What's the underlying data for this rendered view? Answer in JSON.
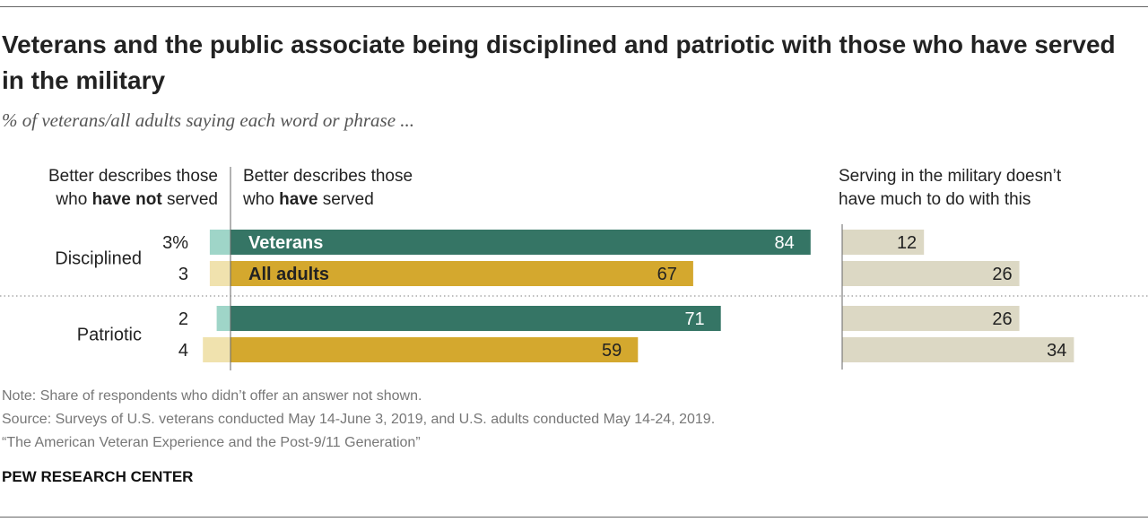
{
  "title": "Veterans and the public associate being disciplined and patriotic with those who have served in the military",
  "subtitle": "% of veterans/all adults saying each word or phrase ...",
  "column_headers": {
    "left_pre": "Better describes those",
    "left_line2_pre": "who ",
    "left_bold": "have not",
    "left_line2_post": " served",
    "middle_pre": "Better describes those",
    "middle_line2_pre": "who ",
    "middle_bold": "have",
    "middle_line2_post": " served",
    "right_line1": "Serving in the military doesn’t",
    "right_line2": "have much to do with this"
  },
  "colors": {
    "veterans": "#357565",
    "veterans_light": "#9fd5c8",
    "all_adults": "#d4a82e",
    "all_adults_light": "#f0e2ae",
    "neutral": "#dcd8c4"
  },
  "chart_data": {
    "type": "bar",
    "categories": [
      "Disciplined",
      "Patriotic"
    ],
    "series": [
      {
        "name": "Veterans",
        "not_served": [
          3,
          2
        ],
        "not_served_labels": [
          "3%",
          "2"
        ],
        "served": [
          84,
          71
        ],
        "neutral": [
          12,
          26
        ]
      },
      {
        "name": "All adults",
        "not_served": [
          3,
          4
        ],
        "not_served_labels": [
          "3",
          "4"
        ],
        "served": [
          67,
          59
        ],
        "neutral": [
          26,
          34
        ]
      }
    ],
    "xlim": [
      0,
      100
    ]
  },
  "notes": {
    "note": "Note: Share of respondents who didn’t offer an answer not shown.",
    "source": "Source: Surveys of U.S. veterans conducted May 14-June 3, 2019, and U.S. adults conducted May 14-24, 2019.",
    "report": "“The American Veteran Experience and the Post-9/11 Generation”"
  },
  "brand": "PEW RESEARCH CENTER"
}
